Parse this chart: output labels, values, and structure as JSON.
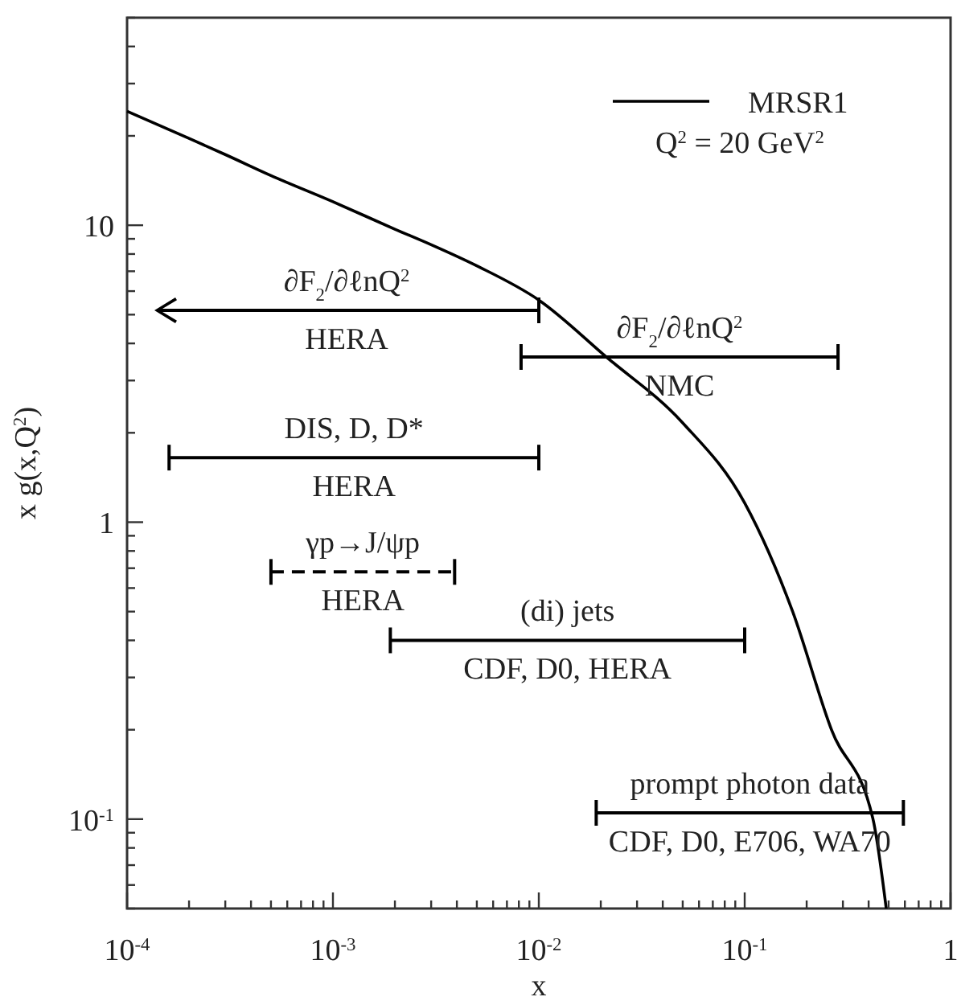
{
  "chart_data": {
    "type": "line",
    "xlabel": "x",
    "ylabel": "x g(x,Q$^{2}$)",
    "log": "xy",
    "grid": false,
    "legend": "top right",
    "xlim": [
      0.0001,
      1
    ],
    "ylim": [
      0.05,
      50
    ],
    "xticks": [
      {
        "value": 0.0001,
        "label": "10$^{-4}$"
      },
      {
        "value": 0.0002,
        "label": null
      },
      {
        "value": 0.0003,
        "label": null
      },
      {
        "value": 0.0004,
        "label": null
      },
      {
        "value": 0.0005,
        "label": null
      },
      {
        "value": 0.0006,
        "label": null
      },
      {
        "value": 0.0007,
        "label": null
      },
      {
        "value": 0.0008,
        "label": null
      },
      {
        "value": 0.0009,
        "label": null
      },
      {
        "value": 0.001,
        "label": "10$^{-3}$"
      },
      {
        "value": 0.002,
        "label": null
      },
      {
        "value": 0.003,
        "label": null
      },
      {
        "value": 0.004,
        "label": null
      },
      {
        "value": 0.005,
        "label": null
      },
      {
        "value": 0.006,
        "label": null
      },
      {
        "value": 0.007,
        "label": null
      },
      {
        "value": 0.008,
        "label": null
      },
      {
        "value": 0.009,
        "label": null
      },
      {
        "value": 0.01,
        "label": "10$^{-2}$"
      },
      {
        "value": 0.02,
        "label": null
      },
      {
        "value": 0.03,
        "label": null
      },
      {
        "value": 0.04,
        "label": null
      },
      {
        "value": 0.05,
        "label": null
      },
      {
        "value": 0.06,
        "label": null
      },
      {
        "value": 0.07,
        "label": null
      },
      {
        "value": 0.08,
        "label": null
      },
      {
        "value": 0.09,
        "label": null
      },
      {
        "value": 0.1,
        "label": "10$^{-1}$"
      },
      {
        "value": 0.2,
        "label": null
      },
      {
        "value": 0.3,
        "label": null
      },
      {
        "value": 0.4,
        "label": null
      },
      {
        "value": 0.5,
        "label": null
      },
      {
        "value": 0.6,
        "label": null
      },
      {
        "value": 0.7,
        "label": null
      },
      {
        "value": 0.8,
        "label": null
      },
      {
        "value": 0.9,
        "label": null
      },
      1
    ],
    "yticks": [
      {
        "value": 0.05,
        "label": null
      },
      {
        "value": 0.06,
        "label": null
      },
      {
        "value": 0.07,
        "label": null
      },
      {
        "value": 0.08,
        "label": null
      },
      {
        "value": 0.09,
        "label": null
      },
      {
        "value": 0.1,
        "label": "10$^{-1}$"
      },
      {
        "value": 0.2,
        "label": null
      },
      {
        "value": 0.3,
        "label": null
      },
      {
        "value": 0.4,
        "label": null
      },
      {
        "value": 0.5,
        "label": null
      },
      {
        "value": 0.6,
        "label": null
      },
      {
        "value": 0.7,
        "label": null
      },
      {
        "value": 0.8,
        "label": null
      },
      {
        "value": 0.9,
        "label": null
      },
      1,
      {
        "value": 2,
        "label": null
      },
      {
        "value": 3,
        "label": null
      },
      {
        "value": 4,
        "label": null
      },
      {
        "value": 5,
        "label": null
      },
      {
        "value": 6,
        "label": null
      },
      {
        "value": 7,
        "label": null
      },
      {
        "value": 8,
        "label": null
      },
      {
        "value": 9,
        "label": null
      },
      10,
      {
        "value": 20,
        "label": null
      },
      {
        "value": 30,
        "label": null
      },
      {
        "value": 40,
        "label": null
      },
      {
        "value": 50,
        "label": null
      }
    ],
    "series": [
      {
        "name": "MRSR1",
        "color": "#000000",
        "line_style": "solid",
        "x": [
          0.0001,
          0.0002,
          0.0003,
          0.0005,
          0.001,
          0.002,
          0.003,
          0.005,
          0.01,
          0.0213,
          0.05,
          0.1,
          0.171,
          0.264,
          0.42,
          0.487
        ],
        "values": [
          24.2,
          19.6,
          17.3,
          14.7,
          12.0,
          9.7,
          8.6,
          7.3,
          5.6,
          3.6,
          2.16,
          1.16,
          0.5,
          0.2,
          0.1,
          0.05
        ]
      },
      {
        "color": "#000000",
        "line_style": "solid",
        "x": [
          0.0082,
          0.284
        ],
        "values": [
          3.6,
          3.6
        ]
      },
      {
        "color": "#000000",
        "line_style": "solid",
        "x": [
          0.00016,
          0.01
        ],
        "values": [
          1.65,
          1.65
        ]
      },
      {
        "color": "#000000",
        "line_style": "dashed",
        "x": [
          0.0005,
          0.0039
        ],
        "values": [
          0.68,
          0.68
        ]
      },
      {
        "color": "#000000",
        "line_style": "solid",
        "x": [
          0.0019,
          0.1
        ],
        "values": [
          0.4,
          0.4
        ]
      },
      {
        "color": "#000000",
        "line_style": "solid",
        "x": [
          0.019,
          0.59
        ],
        "values": [
          0.105,
          0.105
        ]
      }
    ],
    "annotations": [
      "Q$^{2}$ = 20 GeV$^{2}$",
      "∂F$_{2}$/∂ℓnQ$^{2}$",
      "HERA",
      "∂F$_{2}$/∂ℓnQ$^{2}$",
      "NMC",
      "DIS, D, D*",
      "HERA",
      "γp→J/ψp",
      "HERA",
      "(di) jets",
      "CDF, D0, HERA",
      "prompt photon data",
      "CDF, D0, E706, WA70"
    ]
  }
}
